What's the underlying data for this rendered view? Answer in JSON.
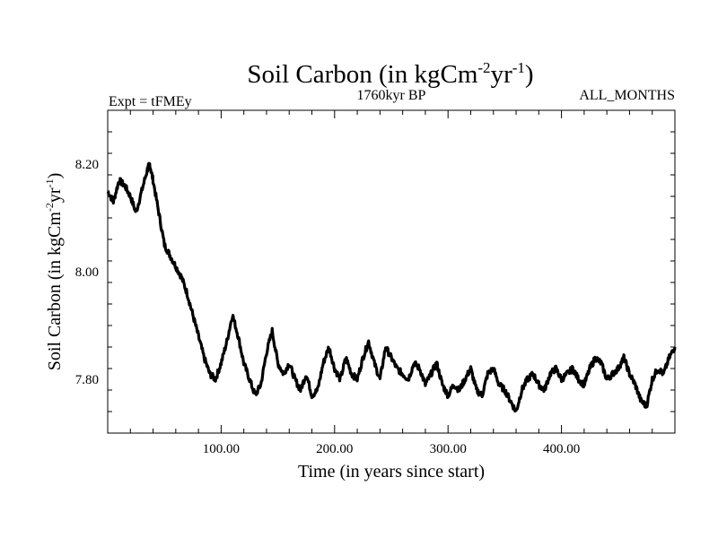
{
  "chart_data": {
    "type": "line",
    "title": "Soil Carbon (in kgCm",
    "title_sup1": "-2",
    "title_mid": "yr",
    "title_sup2": "-1",
    "title_end": ")",
    "subtitle_left": "Expt = tFMEy",
    "subtitle_center": "1760kyr BP",
    "subtitle_right": "ALL_MONTHS",
    "xlabel": "Time (in years since start)",
    "ylabel": "Soil Carbon (in kgCm",
    "ylabel_sup1": "-2",
    "ylabel_mid": "yr",
    "ylabel_sup2": "-1",
    "ylabel_end": ")",
    "xlim": [
      0,
      500
    ],
    "ylim": [
      7.7,
      8.3
    ],
    "x_ticks": [
      100,
      200,
      300,
      400
    ],
    "x_tick_labels": [
      "100.00",
      "200.00",
      "300.00",
      "400.00"
    ],
    "y_ticks": [
      7.8,
      8.0,
      8.2
    ],
    "y_tick_labels": [
      "7.80",
      "8.00",
      "8.20"
    ],
    "series": [
      {
        "name": "Soil Carbon",
        "color": "#000000",
        "x": [
          0,
          5,
          10,
          15,
          20,
          25,
          30,
          35,
          37,
          40,
          45,
          50,
          55,
          60,
          65,
          70,
          75,
          80,
          85,
          90,
          95,
          100,
          105,
          110,
          115,
          120,
          125,
          130,
          135,
          140,
          145,
          150,
          155,
          160,
          165,
          170,
          175,
          180,
          185,
          190,
          195,
          200,
          205,
          210,
          215,
          220,
          225,
          230,
          235,
          240,
          245,
          250,
          255,
          260,
          265,
          270,
          275,
          280,
          285,
          290,
          295,
          300,
          305,
          310,
          315,
          320,
          325,
          330,
          335,
          340,
          345,
          350,
          355,
          360,
          365,
          370,
          375,
          380,
          385,
          390,
          395,
          400,
          405,
          410,
          415,
          420,
          425,
          430,
          435,
          440,
          445,
          450,
          455,
          460,
          465,
          470,
          475,
          480,
          485,
          490,
          495,
          500
        ],
        "y": [
          8.15,
          8.13,
          8.17,
          8.16,
          8.14,
          8.11,
          8.15,
          8.19,
          8.2,
          8.17,
          8.11,
          8.05,
          8.03,
          8.01,
          7.99,
          7.96,
          7.92,
          7.88,
          7.84,
          7.81,
          7.8,
          7.83,
          7.87,
          7.92,
          7.88,
          7.83,
          7.8,
          7.77,
          7.79,
          7.85,
          7.89,
          7.83,
          7.81,
          7.83,
          7.8,
          7.78,
          7.81,
          7.77,
          7.78,
          7.83,
          7.86,
          7.82,
          7.8,
          7.84,
          7.81,
          7.8,
          7.84,
          7.87,
          7.83,
          7.8,
          7.86,
          7.84,
          7.82,
          7.81,
          7.8,
          7.83,
          7.82,
          7.79,
          7.81,
          7.83,
          7.79,
          7.77,
          7.79,
          7.78,
          7.8,
          7.82,
          7.78,
          7.77,
          7.81,
          7.82,
          7.79,
          7.78,
          7.76,
          7.74,
          7.78,
          7.8,
          7.81,
          7.79,
          7.78,
          7.81,
          7.82,
          7.8,
          7.81,
          7.82,
          7.8,
          7.79,
          7.82,
          7.84,
          7.83,
          7.8,
          7.81,
          7.82,
          7.84,
          7.81,
          7.79,
          7.76,
          7.75,
          7.8,
          7.82,
          7.81,
          7.84,
          7.86
        ]
      }
    ]
  }
}
